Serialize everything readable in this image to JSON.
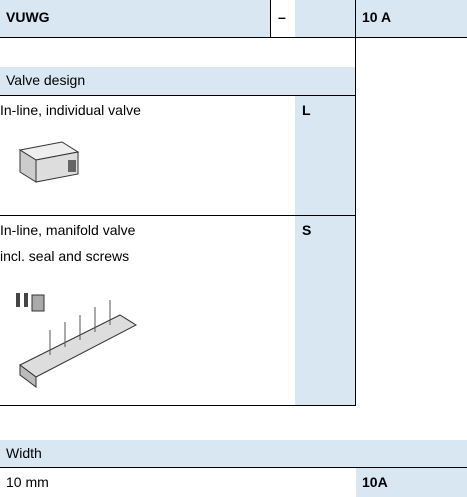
{
  "header": {
    "code": "VUWG",
    "dash": "–",
    "result": "10 A"
  },
  "sections": [
    {
      "title": "Valve design",
      "options": [
        {
          "lines": [
            "In-line, individual valve"
          ],
          "code": "L"
        },
        {
          "lines": [
            "In-line, manifold valve",
            "incl. seal and screws"
          ],
          "code": "S"
        }
      ]
    },
    {
      "title": "Width",
      "options": [
        {
          "lines": [
            "10 mm"
          ],
          "code": "10A"
        }
      ]
    }
  ]
}
